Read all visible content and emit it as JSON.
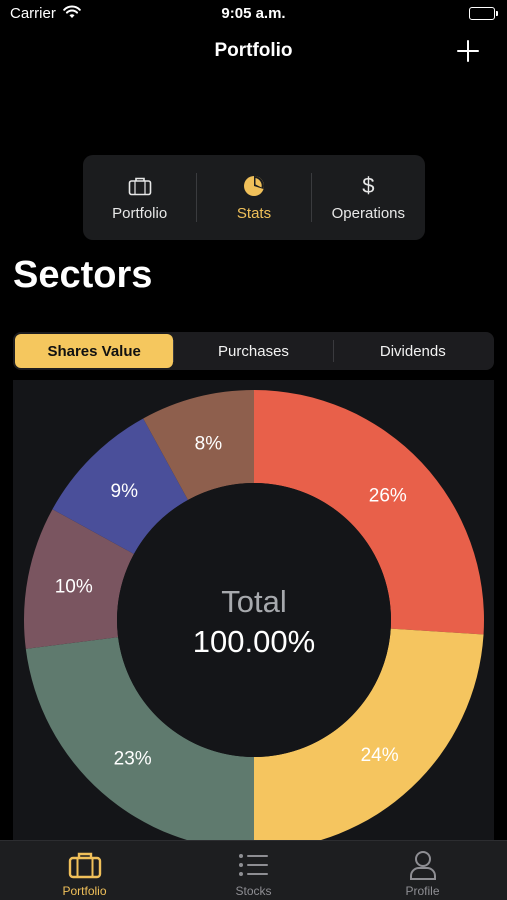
{
  "status_bar": {
    "carrier": "Carrier",
    "time": "9:05 a.m."
  },
  "nav": {
    "title": "Portfolio"
  },
  "top_menu": [
    {
      "label": "Portfolio",
      "icon": "briefcase-icon",
      "active": false
    },
    {
      "label": "Stats",
      "icon": "pie-chart-icon",
      "active": true
    },
    {
      "label": "Operations",
      "icon": "dollar-icon",
      "active": false
    }
  ],
  "section_title": "Sectors",
  "segments": [
    {
      "label": "Shares Value",
      "active": true
    },
    {
      "label": "Purchases",
      "active": false
    },
    {
      "label": "Dividends",
      "active": false
    }
  ],
  "chart_data": {
    "type": "pie",
    "center_label": "Total",
    "center_value": "100.00%",
    "slices": [
      {
        "label": "26%",
        "value": 26,
        "color": "#e8604a"
      },
      {
        "label": "24%",
        "value": 24,
        "color": "#f5c55f"
      },
      {
        "label": "23%",
        "value": 23,
        "color": "#5f7a6e"
      },
      {
        "label": "10%",
        "value": 10,
        "color": "#7a5560"
      },
      {
        "label": "9%",
        "value": 9,
        "color": "#4a4f9a"
      },
      {
        "label": "8%",
        "value": 8,
        "color": "#8e5f4d"
      }
    ]
  },
  "tab_bar": [
    {
      "label": "Portfolio",
      "icon": "briefcase-icon",
      "active": true
    },
    {
      "label": "Stocks",
      "icon": "list-icon",
      "active": false
    },
    {
      "label": "Profile",
      "icon": "person-icon",
      "active": false
    }
  ],
  "colors": {
    "accent": "#f5c75e",
    "background": "#000000"
  }
}
